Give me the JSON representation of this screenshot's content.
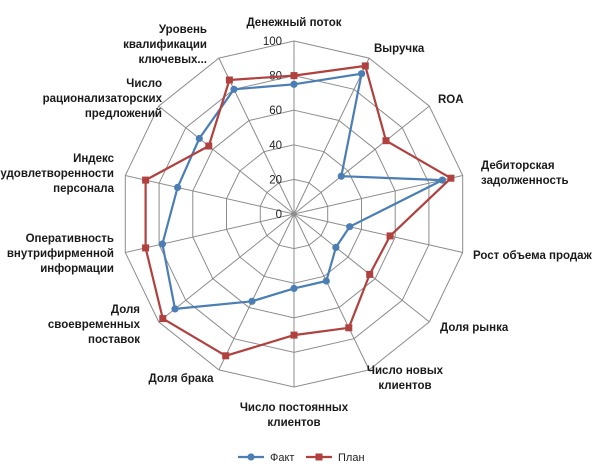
{
  "chart_data": {
    "type": "radar",
    "title": "",
    "categories": [
      [
        "Денежный поток"
      ],
      [
        "Выручка"
      ],
      [
        "ROA"
      ],
      [
        "Дебиторская",
        "задолженность"
      ],
      [
        "Рост объема продаж"
      ],
      [
        "Доля рынка"
      ],
      [
        "Число новых",
        "клиентов"
      ],
      [
        "Число постоянных",
        "клиентов"
      ],
      [
        "Доля брака"
      ],
      [
        "Доля",
        "своевременных",
        "поставок"
      ],
      [
        "Оперативность",
        "внутрифирменной",
        "информации"
      ],
      [
        "Индекс",
        "удовлетворенности",
        "персонала"
      ],
      [
        "Число",
        "рационализаторских",
        "предложений"
      ],
      [
        "Уровень",
        "квалификации",
        "ключевых..."
      ]
    ],
    "radial_ticks": [
      "0",
      "20",
      "40",
      "60",
      "80",
      "100"
    ],
    "rmin": 0,
    "rmax": 100,
    "series": [
      {
        "name": "Факт",
        "color": "#4a7eb5",
        "marker": "circle",
        "values": [
          75,
          90,
          35,
          88,
          33,
          31,
          43,
          43,
          56,
          88,
          78,
          69,
          70,
          80
        ]
      },
      {
        "name": "План",
        "color": "#b0413e",
        "marker": "square",
        "values": [
          80,
          95,
          68,
          93,
          57,
          56,
          73,
          70,
          91,
          97,
          88,
          88,
          63,
          86
        ]
      }
    ],
    "legend_position": "bottom"
  }
}
